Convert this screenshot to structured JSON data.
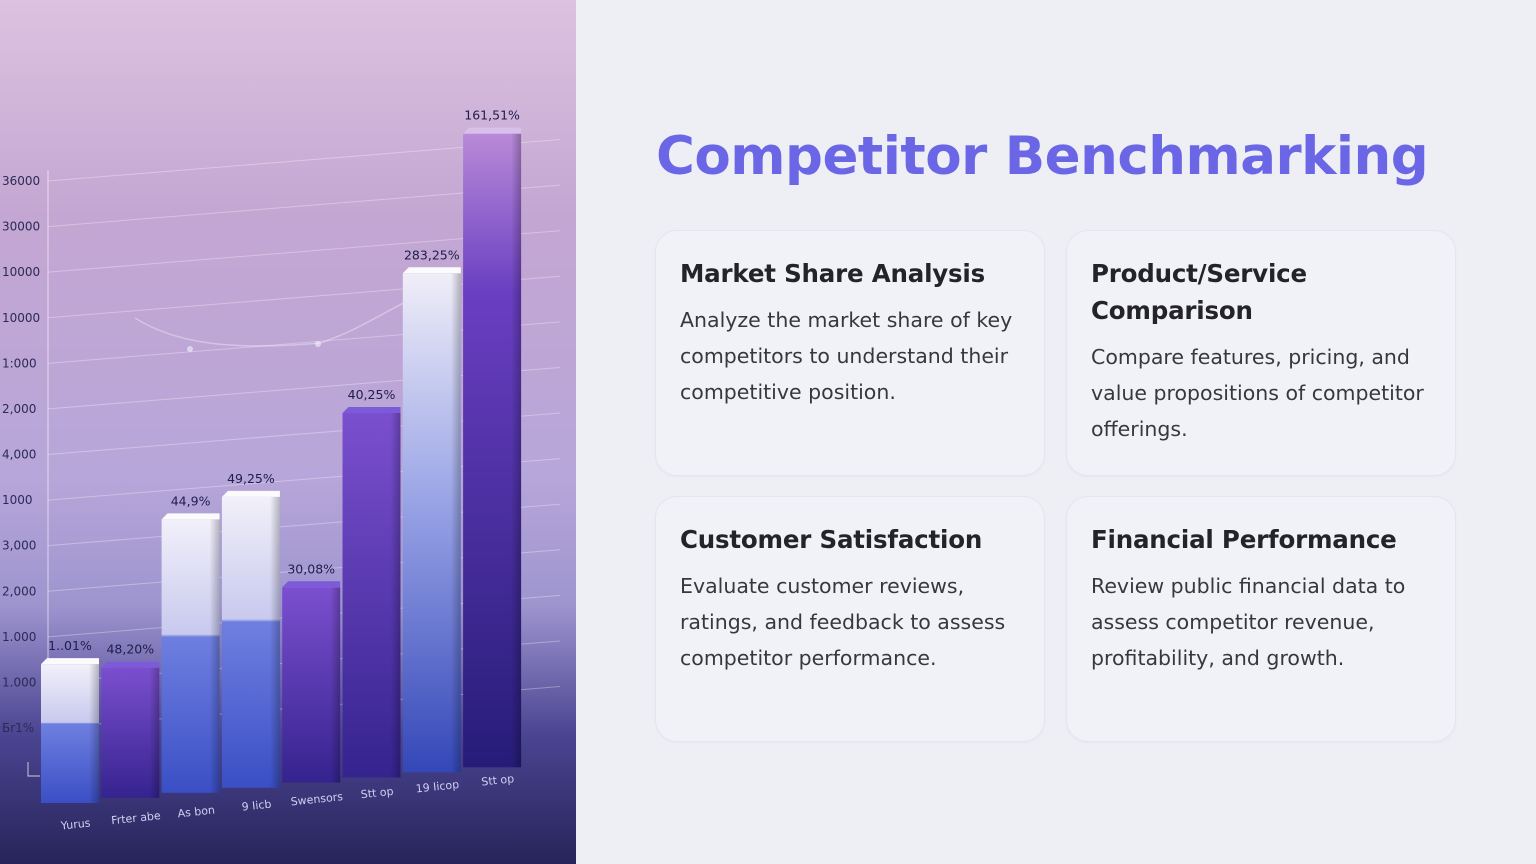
{
  "slide": {
    "title": "Competitor Benchmarking",
    "cards": [
      {
        "heading": "Market Share Analysis",
        "body": "Analyze the market share of key competitors to understand their competitive position."
      },
      {
        "heading": "Product/Service Comparison",
        "body": "Compare features, pricing, and value propositions of competitor offerings."
      },
      {
        "heading": "Customer Satisfaction",
        "body": "Evaluate customer reviews, ratings, and feedback to assess competitor performance."
      },
      {
        "heading": "Financial Performance",
        "body": "Review public financial data to assess competitor revenue, profitability, and growth."
      }
    ]
  },
  "chart_data": {
    "type": "bar",
    "title": "",
    "xlabel": "",
    "ylabel": "",
    "y_tick_labels": [
      "36000",
      "30000",
      "10000",
      "10000",
      "1:000",
      "2,000",
      "4,000",
      "1000",
      "3,000",
      "2,000",
      "1.000",
      "1.000",
      "Бr1%"
    ],
    "categories": [
      "Yurus",
      "Frter abe",
      "As bon",
      "9 Iicb",
      "Swensors",
      "Stt op",
      "19 Iicop",
      "Stt op"
    ],
    "value_labels": [
      "1..01%",
      "48,20%",
      "44,9%",
      "49,25%",
      "30,08%",
      "40,25%",
      "283,25%",
      "161,51%"
    ],
    "values": [
      3.2,
      3.0,
      6.3,
      6.7,
      4.5,
      8.4,
      11.5,
      14.6
    ],
    "colors": {
      "light": "#e9e8f6",
      "blue": "#4a5ed0",
      "purple": "#5b3db8",
      "deep": "#2c2484"
    },
    "bar_styles": [
      "light-blue",
      "purple",
      "light-blue",
      "light-blue",
      "purple",
      "purple",
      "light-blue",
      "purple-tall"
    ]
  }
}
